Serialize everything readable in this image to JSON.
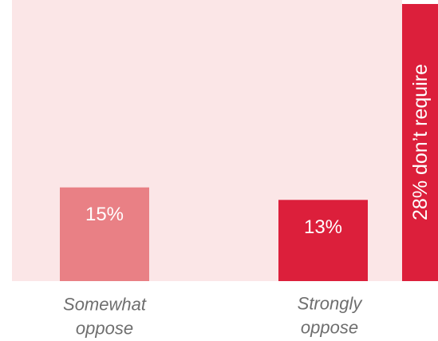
{
  "chart_data": {
    "type": "bar",
    "categories": [
      "Somewhat oppose",
      "Strongly oppose"
    ],
    "category_lines": [
      [
        "Somewhat",
        "oppose"
      ],
      [
        "Strongly",
        "oppose"
      ]
    ],
    "values": [
      15,
      13
    ],
    "value_labels": [
      "15%",
      "13%"
    ],
    "bar_colors": [
      "#E98085",
      "#DC1F3B"
    ],
    "total_value": 28,
    "total_label": "28% don’t require",
    "total_color": "#DC1F3B",
    "background_color": "#FBE6E7",
    "ylim": [
      0,
      45
    ],
    "title": "",
    "xlabel": "",
    "ylabel": "",
    "grid": false
  }
}
